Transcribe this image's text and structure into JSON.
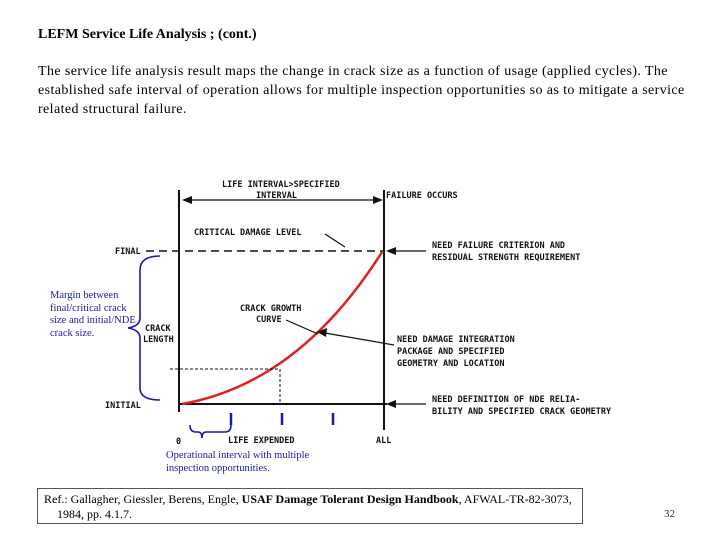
{
  "slide": {
    "title": "LEFM Service Life Analysis ; (cont.)",
    "body": "The service life analysis result maps the change in crack size as a function of usage (applied cycles). The established safe interval of operation allows for multiple inspection opportunities so as to mitigate a service related structural failure.",
    "page_number": "32"
  },
  "diagram": {
    "labels": {
      "life_interval_1": "LIFE INTERVAL>SPECIFIED",
      "life_interval_2": "INTERVAL",
      "failure_occurs": "FAILURE OCCURS",
      "critical_damage": "CRITICAL DAMAGE LEVEL",
      "final": "FINAL",
      "initial": "INITIAL",
      "crack_length_1": "CRACK",
      "crack_length_2": "LENGTH",
      "crack_growth_1": "CRACK GROWTH",
      "crack_growth_2": "CURVE",
      "need_failure_1": "NEED FAILURE CRITERION AND",
      "need_failure_2": "RESIDUAL STRENGTH REQUIREMENT",
      "need_damage_1": "NEED DAMAGE INTEGRATION",
      "need_damage_2": "PACKAGE AND SPECIFIED",
      "need_damage_3": "GEOMETRY AND LOCATION",
      "need_nde_1": "NEED DEFINITION OF NDE RELIA-",
      "need_nde_2": "BILITY AND SPECIFIED CRACK GEOMETRY",
      "zero": "0",
      "life_expended": "LIFE EXPENDED",
      "all": "ALL"
    },
    "colors": {
      "curve": "#e02020",
      "annotation": "#1a1aa8",
      "ink": "#111111"
    }
  },
  "annotations": {
    "margin_note": "Margin between final/critical crack size and initial/NDE crack size.",
    "interval_note": "Operational interval with multiple inspection opportunities."
  },
  "reference": {
    "prefix": "Ref.: Gallagher, Giessler, Berens, Engle, ",
    "book": "USAF Damage Tolerant Design Handbook",
    "suffix": ", AFWAL-TR-82-3073,",
    "line2": "1984, pp. 4.1.7."
  }
}
